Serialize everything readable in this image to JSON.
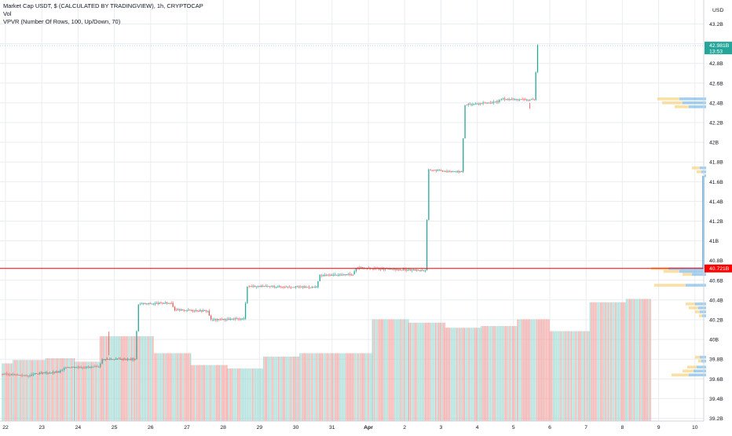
{
  "chart_data": {
    "type": "candlestick",
    "title": "Market Cap USDT, $ (CALCULATED BY TRADINGVIEW), 1h, CRYPTOCAP",
    "indicators": [
      "Vol",
      "VPVR (Number Of Rows, 100, Up/Down, 70)"
    ],
    "currency_label": "USD",
    "y_unit": "B",
    "ylim": [
      39.22,
      43.44
    ],
    "y_ticks": [
      "43.2B",
      "43B",
      "42.8B",
      "42.6B",
      "42.4B",
      "42.2B",
      "42B",
      "41.8B",
      "41.6B",
      "41.4B",
      "41.2B",
      "41B",
      "40.8B",
      "40.6B",
      "40.4B",
      "40.2B",
      "40B",
      "39.8B",
      "39.6B",
      "39.4B",
      "39.2B"
    ],
    "x_labels": [
      "22",
      "23",
      "24",
      "25",
      "26",
      "27",
      "28",
      "29",
      "30",
      "31",
      "Apr",
      "2",
      "3",
      "4",
      "5",
      "6",
      "7",
      "8",
      "9",
      "10"
    ],
    "price_path": [
      {
        "day": 21.9,
        "value": 39.65
      },
      {
        "day": 22.4,
        "value": 39.64
      },
      {
        "day": 22.7,
        "value": 39.63
      },
      {
        "day": 22.8,
        "value": 39.65
      },
      {
        "day": 23.5,
        "value": 39.67
      },
      {
        "day": 23.6,
        "value": 39.69
      },
      {
        "day": 23.7,
        "value": 39.72
      },
      {
        "day": 24.6,
        "value": 39.72
      },
      {
        "day": 24.7,
        "value": 39.8
      },
      {
        "day": 25.6,
        "value": 39.8
      },
      {
        "day": 25.7,
        "value": 40.36
      },
      {
        "day": 26.6,
        "value": 40.37
      },
      {
        "day": 26.7,
        "value": 40.3
      },
      {
        "day": 27.6,
        "value": 40.29
      },
      {
        "day": 27.7,
        "value": 40.2
      },
      {
        "day": 28.6,
        "value": 40.21
      },
      {
        "day": 28.7,
        "value": 40.54
      },
      {
        "day": 30.6,
        "value": 40.53
      },
      {
        "day": 30.7,
        "value": 40.65
      },
      {
        "day": 31.6,
        "value": 40.66
      },
      {
        "day": 31.7,
        "value": 40.73
      },
      {
        "day": 32.7,
        "value": 40.71
      },
      {
        "day": 33.6,
        "value": 40.7
      },
      {
        "day": 33.7,
        "value": 41.72
      },
      {
        "day": 34.6,
        "value": 41.7
      },
      {
        "day": 34.7,
        "value": 42.38
      },
      {
        "day": 35.6,
        "value": 42.41
      },
      {
        "day": 35.7,
        "value": 42.44
      },
      {
        "day": 36.6,
        "value": 42.43
      },
      {
        "day": 36.7,
        "value": 42.98
      }
    ],
    "volume_bars": [
      {
        "from": 21.9,
        "to": 22.2,
        "h": 0.34
      },
      {
        "from": 22.2,
        "to": 23.1,
        "h": 0.36
      },
      {
        "from": 23.1,
        "to": 23.9,
        "h": 0.37
      },
      {
        "from": 23.9,
        "to": 24.6,
        "h": 0.35
      },
      {
        "from": 24.6,
        "to": 25.6,
        "h": 0.5
      },
      {
        "from": 25.6,
        "to": 26.1,
        "h": 0.5
      },
      {
        "from": 26.1,
        "to": 27.1,
        "h": 0.4
      },
      {
        "from": 27.1,
        "to": 28.1,
        "h": 0.33
      },
      {
        "from": 28.1,
        "to": 29.1,
        "h": 0.31
      },
      {
        "from": 29.1,
        "to": 30.1,
        "h": 0.38
      },
      {
        "from": 30.1,
        "to": 32.1,
        "h": 0.4
      },
      {
        "from": 32.1,
        "to": 33.1,
        "h": 0.6
      },
      {
        "from": 33.1,
        "to": 34.1,
        "h": 0.58
      },
      {
        "from": 34.1,
        "to": 35.1,
        "h": 0.55
      },
      {
        "from": 35.1,
        "to": 36.1,
        "h": 0.56
      },
      {
        "from": 36.1,
        "to": 37.0,
        "h": 0.6
      },
      {
        "from": 37.0,
        "to": 38.1,
        "h": 0.53
      },
      {
        "from": 38.1,
        "to": 39.1,
        "h": 0.7
      },
      {
        "from": 39.1,
        "to": 39.8,
        "h": 0.72
      }
    ],
    "vpvr_rows": [
      {
        "price": 42.44,
        "up": 34,
        "down": 28
      },
      {
        "price": 42.4,
        "up": 30,
        "down": 26
      },
      {
        "price": 42.36,
        "up": 22,
        "down": 18
      },
      {
        "price": 41.74,
        "up": 8,
        "down": 10
      },
      {
        "price": 41.7,
        "up": 6,
        "down": 6
      },
      {
        "price": 41.66,
        "up": 2,
        "down": 0
      },
      {
        "price": 40.72,
        "up": 48,
        "down": 22
      },
      {
        "price": 40.69,
        "up": 34,
        "down": 20
      },
      {
        "price": 40.66,
        "up": 18,
        "down": 12
      },
      {
        "price": 40.55,
        "up": 26,
        "down": 40
      },
      {
        "price": 40.36,
        "up": 14,
        "down": 12
      },
      {
        "price": 40.32,
        "up": 10,
        "down": 12
      },
      {
        "price": 40.28,
        "up": 8,
        "down": 6
      },
      {
        "price": 40.24,
        "up": 5,
        "down": 4
      },
      {
        "price": 39.82,
        "up": 8,
        "down": 6
      },
      {
        "price": 39.78,
        "up": 6,
        "down": 4
      },
      {
        "price": 39.72,
        "up": 12,
        "down": 12
      },
      {
        "price": 39.68,
        "up": 16,
        "down": 14
      },
      {
        "price": 39.64,
        "up": 22,
        "down": 22
      }
    ],
    "last_price_label": {
      "value": 42.98,
      "price": "42.981B",
      "countdown": "13:53",
      "color": "#26a69a"
    },
    "marker_line": {
      "value": 40.72,
      "label": "40.721B",
      "color": "#ff0000"
    },
    "colors": {
      "up": "#26a69a",
      "down": "#ef5350",
      "vol_up": "#a7dcd6",
      "vol_down": "#f7a9a7",
      "vpvr_up": "#5ba8e0",
      "vpvr_down": "#f8c75c",
      "grid": "#e9ecf1"
    }
  }
}
